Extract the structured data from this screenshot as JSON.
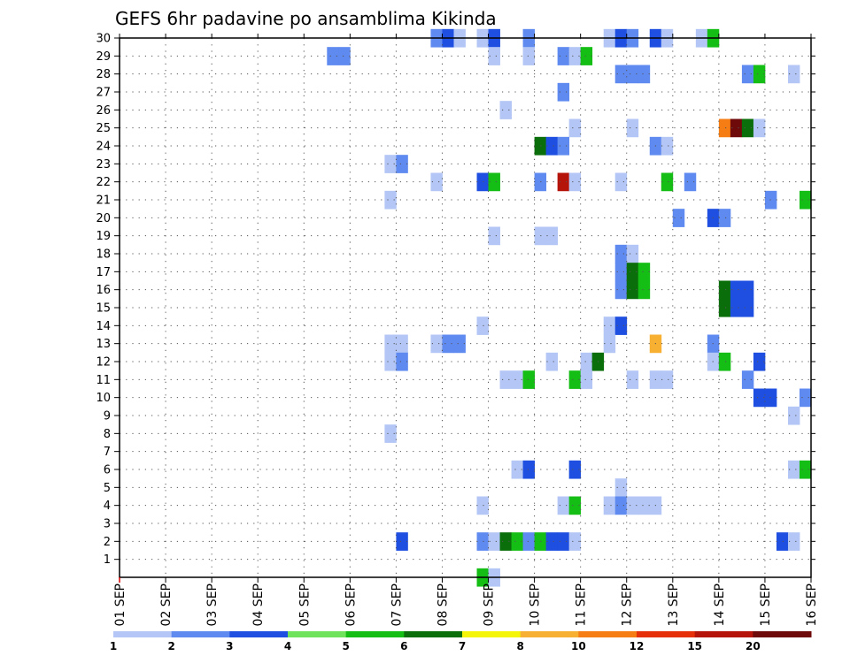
{
  "chart_data": {
    "type": "heatmap",
    "title": "GEFS 6hr padavine po ansamblima Kikinda",
    "xlabel": "",
    "ylabel": "",
    "x_tick_labels": [
      "01 SEP",
      "02 SEP",
      "03 SEP",
      "04 SEP",
      "05 SEP",
      "06 SEP",
      "07 SEP",
      "08 SEP",
      "09 SEP",
      "10 SEP",
      "11 SEP",
      "12 SEP",
      "13 SEP",
      "14 SEP",
      "15 SEP",
      "16 SEP"
    ],
    "x_range_days": [
      0,
      15
    ],
    "time_step_hours": 6,
    "y_tick_labels": [
      "1",
      "2",
      "3",
      "4",
      "5",
      "6",
      "7",
      "8",
      "9",
      "10",
      "11",
      "12",
      "13",
      "14",
      "15",
      "16",
      "17",
      "18",
      "19",
      "20",
      "21",
      "22",
      "23",
      "24",
      "25",
      "26",
      "27",
      "28",
      "29",
      "30"
    ],
    "y_range": [
      0,
      30
    ],
    "grid": true,
    "legend": {
      "position": "bottom",
      "labels": [
        "1",
        "2",
        "3",
        "4",
        "5",
        "6",
        "7",
        "8",
        "10",
        "12",
        "15",
        "20"
      ],
      "colors": [
        "#b3c6f5",
        "#5f8af0",
        "#1e4fe0",
        "#6ee35b",
        "#14be14",
        "#0a6e0a",
        "#f5f50a",
        "#f7b032",
        "#f57d14",
        "#e6300a",
        "#b4140a",
        "#6e0a0a"
      ]
    },
    "cells": [
      {
        "member": 30,
        "day": 6.75,
        "level": 2
      },
      {
        "member": 30,
        "day": 7.0,
        "level": 3
      },
      {
        "member": 30,
        "day": 7.25,
        "level": 1
      },
      {
        "member": 30,
        "day": 7.75,
        "level": 1
      },
      {
        "member": 30,
        "day": 8.0,
        "level": 3
      },
      {
        "member": 30,
        "day": 8.75,
        "level": 2
      },
      {
        "member": 30,
        "day": 10.5,
        "level": 1
      },
      {
        "member": 30,
        "day": 10.75,
        "level": 3
      },
      {
        "member": 30,
        "day": 11.0,
        "level": 2
      },
      {
        "member": 30,
        "day": 11.5,
        "level": 3
      },
      {
        "member": 30,
        "day": 11.75,
        "level": 1
      },
      {
        "member": 30,
        "day": 12.5,
        "level": 1
      },
      {
        "member": 30,
        "day": 12.75,
        "level": 5
      },
      {
        "member": 29,
        "day": 4.5,
        "level": 2
      },
      {
        "member": 29,
        "day": 4.75,
        "level": 2
      },
      {
        "member": 29,
        "day": 8.0,
        "level": 1
      },
      {
        "member": 29,
        "day": 8.75,
        "level": 1
      },
      {
        "member": 29,
        "day": 9.5,
        "level": 2
      },
      {
        "member": 29,
        "day": 9.75,
        "level": 1
      },
      {
        "member": 29,
        "day": 10.0,
        "level": 5
      },
      {
        "member": 28,
        "day": 10.75,
        "level": 2
      },
      {
        "member": 28,
        "day": 11.0,
        "level": 2
      },
      {
        "member": 28,
        "day": 11.25,
        "level": 2
      },
      {
        "member": 28,
        "day": 13.5,
        "level": 2
      },
      {
        "member": 28,
        "day": 13.75,
        "level": 5
      },
      {
        "member": 28,
        "day": 14.5,
        "level": 1
      },
      {
        "member": 27,
        "day": 9.5,
        "level": 2
      },
      {
        "member": 26,
        "day": 8.25,
        "level": 1
      },
      {
        "member": 25,
        "day": 9.75,
        "level": 1
      },
      {
        "member": 25,
        "day": 11.0,
        "level": 1
      },
      {
        "member": 25,
        "day": 13.0,
        "level": 9
      },
      {
        "member": 25,
        "day": 13.25,
        "level": 12
      },
      {
        "member": 25,
        "day": 13.5,
        "level": 6
      },
      {
        "member": 25,
        "day": 13.75,
        "level": 1
      },
      {
        "member": 24,
        "day": 9.0,
        "level": 6
      },
      {
        "member": 24,
        "day": 9.25,
        "level": 3
      },
      {
        "member": 24,
        "day": 9.5,
        "level": 2
      },
      {
        "member": 24,
        "day": 11.5,
        "level": 2
      },
      {
        "member": 24,
        "day": 11.75,
        "level": 1
      },
      {
        "member": 23,
        "day": 5.75,
        "level": 1
      },
      {
        "member": 23,
        "day": 6.0,
        "level": 2
      },
      {
        "member": 22,
        "day": 6.75,
        "level": 1
      },
      {
        "member": 22,
        "day": 7.75,
        "level": 3
      },
      {
        "member": 22,
        "day": 8.0,
        "level": 5
      },
      {
        "member": 22,
        "day": 9.0,
        "level": 2
      },
      {
        "member": 22,
        "day": 9.5,
        "level": 11
      },
      {
        "member": 22,
        "day": 9.75,
        "level": 1
      },
      {
        "member": 22,
        "day": 10.75,
        "level": 1
      },
      {
        "member": 22,
        "day": 11.75,
        "level": 5
      },
      {
        "member": 22,
        "day": 12.25,
        "level": 2
      },
      {
        "member": 21,
        "day": 5.75,
        "level": 1
      },
      {
        "member": 21,
        "day": 14.0,
        "level": 2
      },
      {
        "member": 21,
        "day": 14.75,
        "level": 5
      },
      {
        "member": 20,
        "day": 12.0,
        "level": 2
      },
      {
        "member": 20,
        "day": 12.75,
        "level": 3
      },
      {
        "member": 20,
        "day": 13.0,
        "level": 2
      },
      {
        "member": 19,
        "day": 8.0,
        "level": 1
      },
      {
        "member": 19,
        "day": 9.0,
        "level": 1
      },
      {
        "member": 19,
        "day": 9.25,
        "level": 1
      },
      {
        "member": 18,
        "day": 10.75,
        "level": 2
      },
      {
        "member": 18,
        "day": 11.0,
        "level": 1
      },
      {
        "member": 17,
        "day": 10.75,
        "level": 2
      },
      {
        "member": 17,
        "day": 11.0,
        "level": 6
      },
      {
        "member": 17,
        "day": 11.25,
        "level": 5
      },
      {
        "member": 16,
        "day": 10.75,
        "level": 2
      },
      {
        "member": 16,
        "day": 11.0,
        "level": 6
      },
      {
        "member": 16,
        "day": 11.25,
        "level": 5
      },
      {
        "member": 16,
        "day": 13.0,
        "level": 6
      },
      {
        "member": 16,
        "day": 13.25,
        "level": 3
      },
      {
        "member": 16,
        "day": 13.5,
        "level": 3
      },
      {
        "member": 15,
        "day": 13.0,
        "level": 6
      },
      {
        "member": 15,
        "day": 13.25,
        "level": 3
      },
      {
        "member": 15,
        "day": 13.5,
        "level": 3
      },
      {
        "member": 14,
        "day": 7.75,
        "level": 1
      },
      {
        "member": 14,
        "day": 10.5,
        "level": 1
      },
      {
        "member": 14,
        "day": 10.75,
        "level": 3
      },
      {
        "member": 13,
        "day": 5.75,
        "level": 1
      },
      {
        "member": 13,
        "day": 6.0,
        "level": 1
      },
      {
        "member": 13,
        "day": 6.75,
        "level": 1
      },
      {
        "member": 13,
        "day": 7.0,
        "level": 2
      },
      {
        "member": 13,
        "day": 7.25,
        "level": 2
      },
      {
        "member": 13,
        "day": 10.5,
        "level": 1
      },
      {
        "member": 13,
        "day": 11.5,
        "level": 8
      },
      {
        "member": 13,
        "day": 12.75,
        "level": 2
      },
      {
        "member": 12,
        "day": 5.75,
        "level": 1
      },
      {
        "member": 12,
        "day": 6.0,
        "level": 2
      },
      {
        "member": 12,
        "day": 9.25,
        "level": 1
      },
      {
        "member": 12,
        "day": 10.0,
        "level": 1
      },
      {
        "member": 12,
        "day": 10.25,
        "level": 6
      },
      {
        "member": 12,
        "day": 12.75,
        "level": 1
      },
      {
        "member": 12,
        "day": 13.0,
        "level": 5
      },
      {
        "member": 12,
        "day": 13.75,
        "level": 3
      },
      {
        "member": 11,
        "day": 8.25,
        "level": 1
      },
      {
        "member": 11,
        "day": 8.5,
        "level": 1
      },
      {
        "member": 11,
        "day": 8.75,
        "level": 5
      },
      {
        "member": 11,
        "day": 9.75,
        "level": 5
      },
      {
        "member": 11,
        "day": 10.0,
        "level": 1
      },
      {
        "member": 11,
        "day": 11.0,
        "level": 1
      },
      {
        "member": 11,
        "day": 11.5,
        "level": 1
      },
      {
        "member": 11,
        "day": 11.75,
        "level": 1
      },
      {
        "member": 11,
        "day": 13.5,
        "level": 2
      },
      {
        "member": 10,
        "day": 13.75,
        "level": 3
      },
      {
        "member": 10,
        "day": 14.0,
        "level": 3
      },
      {
        "member": 10,
        "day": 14.75,
        "level": 2
      },
      {
        "member": 9,
        "day": 14.5,
        "level": 1
      },
      {
        "member": 8,
        "day": 5.75,
        "level": 1
      },
      {
        "member": 6,
        "day": 8.5,
        "level": 1
      },
      {
        "member": 6,
        "day": 8.75,
        "level": 3
      },
      {
        "member": 6,
        "day": 9.75,
        "level": 3
      },
      {
        "member": 6,
        "day": 14.5,
        "level": 1
      },
      {
        "member": 6,
        "day": 14.75,
        "level": 5
      },
      {
        "member": 5,
        "day": 10.75,
        "level": 1
      },
      {
        "member": 4,
        "day": 7.75,
        "level": 1
      },
      {
        "member": 4,
        "day": 9.5,
        "level": 1
      },
      {
        "member": 4,
        "day": 9.75,
        "level": 5
      },
      {
        "member": 4,
        "day": 10.5,
        "level": 1
      },
      {
        "member": 4,
        "day": 10.75,
        "level": 2
      },
      {
        "member": 4,
        "day": 11.0,
        "level": 1
      },
      {
        "member": 4,
        "day": 11.25,
        "level": 1
      },
      {
        "member": 4,
        "day": 11.5,
        "level": 1
      },
      {
        "member": 2,
        "day": 6.0,
        "level": 3
      },
      {
        "member": 2,
        "day": 7.75,
        "level": 2
      },
      {
        "member": 2,
        "day": 8.0,
        "level": 1
      },
      {
        "member": 2,
        "day": 8.25,
        "level": 6
      },
      {
        "member": 2,
        "day": 8.5,
        "level": 5
      },
      {
        "member": 2,
        "day": 8.75,
        "level": 2
      },
      {
        "member": 2,
        "day": 9.0,
        "level": 5
      },
      {
        "member": 2,
        "day": 9.25,
        "level": 3
      },
      {
        "member": 2,
        "day": 9.5,
        "level": 3
      },
      {
        "member": 2,
        "day": 9.75,
        "level": 1
      },
      {
        "member": 2,
        "day": 14.25,
        "level": 3
      },
      {
        "member": 2,
        "day": 14.5,
        "level": 1
      },
      {
        "member": 0,
        "day": 7.75,
        "level": 5
      },
      {
        "member": 0,
        "day": 8.0,
        "level": 1
      }
    ]
  }
}
